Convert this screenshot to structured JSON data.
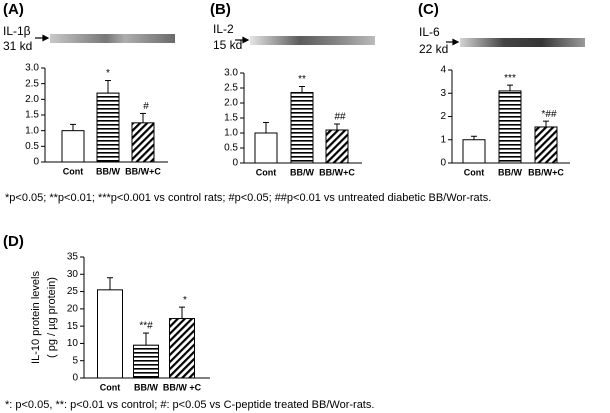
{
  "chart_data": [
    {
      "type": "bar",
      "title": "(A)",
      "blot_label": "IL-1β",
      "blot_size": "31 kd",
      "categories": [
        "Cont",
        "BB/W",
        "BB/W+C"
      ],
      "values": [
        1.0,
        2.2,
        1.25
      ],
      "errors": [
        0.2,
        0.4,
        0.3
      ],
      "annotations": [
        null,
        "*",
        "#"
      ],
      "ylim": [
        0,
        3
      ],
      "yticks": [
        0,
        0.5,
        {
          "value": 1,
          "label": "1.0"
        },
        1.5,
        {
          "value": 2,
          "label": "2.0"
        },
        2.5,
        {
          "value": 3,
          "label": "3.0"
        }
      ]
    },
    {
      "type": "bar",
      "title": "(B)",
      "blot_label": "IL-2",
      "blot_size": "15 kd",
      "categories": [
        "Cont",
        "BB/W",
        "BB/W+C"
      ],
      "values": [
        1.0,
        2.35,
        1.1
      ],
      "errors": [
        0.35,
        0.2,
        0.2
      ],
      "annotations": [
        null,
        "**",
        "##"
      ],
      "ylim": [
        0,
        3
      ],
      "yticks": [
        0,
        0.5,
        {
          "value": 1,
          "label": "1.0"
        },
        1.5,
        {
          "value": 2,
          "label": "2.0"
        },
        2.5,
        {
          "value": 3,
          "label": "3.0"
        }
      ]
    },
    {
      "type": "bar",
      "title": "(C)",
      "blot_label": "IL-6",
      "blot_size": "22 kd",
      "categories": [
        "Cont",
        "BB/W",
        "BB/W+C"
      ],
      "values": [
        1.0,
        3.1,
        1.55
      ],
      "errors": [
        0.15,
        0.25,
        0.25
      ],
      "annotations": [
        null,
        "***",
        "*##"
      ],
      "ylim": [
        0,
        4
      ],
      "yticks": [
        0,
        1,
        2,
        3,
        4
      ]
    },
    {
      "type": "bar",
      "title": "(D)",
      "y_label": [
        "IL-10 protein levels",
        "( pg / µg protein)"
      ],
      "categories": [
        "Cont",
        "BB/W",
        "BB/W +C"
      ],
      "values": [
        25.5,
        9.5,
        17.2
      ],
      "errors": [
        3.5,
        3.5,
        3.3
      ],
      "annotations": [
        null,
        "**#",
        "*"
      ],
      "ylim": [
        0,
        35
      ],
      "yticks": [
        0,
        5,
        10,
        15,
        20,
        25,
        30,
        35
      ]
    }
  ],
  "footnotes": [
    "*p<0.05; **p<0.01; ***p<0.001 vs control rats;  #p<0.05; ##p<0.01 vs untreated diabetic BB/Wor-rats.",
    "*: p<0.05, **: p<0.01 vs control; #: p<0.05 vs C-peptide treated BB/Wor-rats."
  ]
}
